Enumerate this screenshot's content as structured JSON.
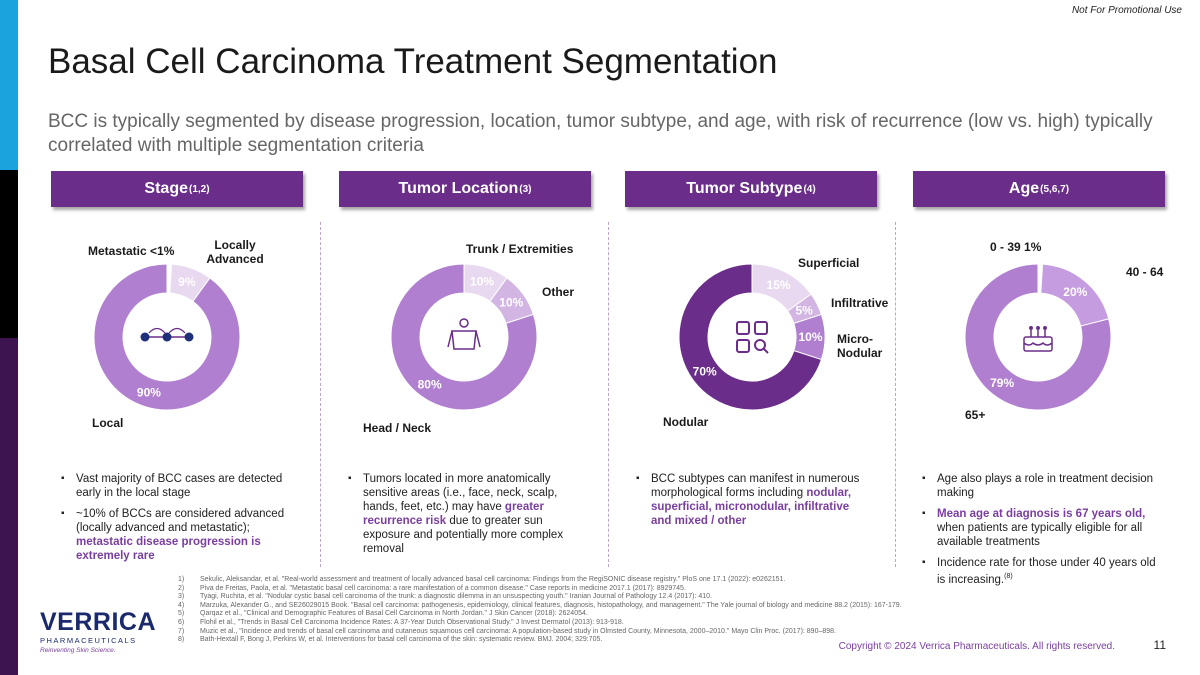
{
  "colors": {
    "dark_purple": "#6a2d8a",
    "light_purple": "#e8d9f0",
    "mid_purple": "#b07fd0",
    "accent": "#7a3ea0"
  },
  "top_note": "Not For Promotional Use",
  "title": "Basal Cell Carcinoma Treatment Segmentation",
  "subtitle": "BCC is typically segmented by disease progression, location, tumor subtype, and age, with risk of recurrence (low vs. high) typically correlated with multiple segmentation criteria",
  "headers": [
    {
      "label": "Stage",
      "sup": "(1,2)"
    },
    {
      "label": "Tumor Location",
      "sup": "(3)"
    },
    {
      "label": "Tumor Subtype",
      "sup": "(4)"
    },
    {
      "label": "Age",
      "sup": "(5,6,7)"
    }
  ],
  "chart_data": [
    {
      "type": "pie",
      "title": "Stage",
      "icon": "progression-dots-icon",
      "slices": [
        {
          "name": "Metastatic",
          "value": 1,
          "value_label": "<1%",
          "color": "#ffffff"
        },
        {
          "name": "Locally Advanced",
          "value": 9,
          "value_label": "9%",
          "color": "#e8d9f0"
        },
        {
          "name": "Local",
          "value": 90,
          "value_label": "90%",
          "color": "#b07fd0"
        }
      ]
    },
    {
      "type": "pie",
      "title": "Tumor Location",
      "icon": "torso-icon",
      "slices": [
        {
          "name": "Trunk / Extremities",
          "value": 10,
          "value_label": "10%",
          "color": "#e8d9f0"
        },
        {
          "name": "Other",
          "value": 10,
          "value_label": "10%",
          "color": "#d2b5e3"
        },
        {
          "name": "Head / Neck",
          "value": 80,
          "value_label": "80%",
          "color": "#b07fd0"
        }
      ]
    },
    {
      "type": "pie",
      "title": "Tumor Subtype",
      "icon": "search-grid-icon",
      "slices": [
        {
          "name": "Superficial",
          "value": 15,
          "value_label": "15%",
          "color": "#e8d9f0"
        },
        {
          "name": "Infiltrative",
          "value": 5,
          "value_label": "5%",
          "color": "#d2b5e3"
        },
        {
          "name": "Micro-Nodular",
          "value": 10,
          "value_label": "10%",
          "color": "#b07fd0"
        },
        {
          "name": "Nodular",
          "value": 70,
          "value_label": "70%",
          "color": "#6a2d8a"
        }
      ]
    },
    {
      "type": "pie",
      "title": "Age",
      "icon": "birthday-cake-icon",
      "slices": [
        {
          "name": "0 - 39",
          "value": 1,
          "value_label": "1%",
          "color": "#ffffff"
        },
        {
          "name": "40 - 64",
          "value": 20,
          "value_label": "20%",
          "color": "#c69ce0"
        },
        {
          "name": "65+",
          "value": 79,
          "value_label": "79%",
          "color": "#b07fd0"
        }
      ]
    }
  ],
  "labels": {
    "stage": {
      "metastatic": "Metastatic",
      "metastatic_pct": "<1%",
      "locally_advanced": "Locally Advanced",
      "local": "Local"
    },
    "location": {
      "trunk": "Trunk / Extremities",
      "other": "Other",
      "head_neck": "Head / Neck"
    },
    "subtype": {
      "superficial": "Superficial",
      "infiltrative": "Infiltrative",
      "micro_nodular": "Micro- Nodular",
      "nodular": "Nodular"
    },
    "age": {
      "young": "0 - 39",
      "young_pct": "1%",
      "mid": "40 - 64",
      "old": "65+"
    }
  },
  "bullets": {
    "stage": {
      "b1": "Vast majority of BCC cases are detected early in the local stage",
      "b2_pre": "~10% of BCCs are considered advanced (locally advanced and metastatic); ",
      "b2_hl": "metastatic disease progression is extremely rare"
    },
    "location": {
      "pre": "Tumors located in more anatomically sensitive areas (i.e., face, neck, scalp, hands, feet, etc.) may have ",
      "hl": "greater recurrence risk",
      "post": " due to greater sun exposure and potentially more complex removal"
    },
    "subtype": {
      "pre": "BCC subtypes can manifest in numerous morphological forms including ",
      "hl": "nodular, superficial, micronodular, infiltrative and mixed / other"
    },
    "age": {
      "b1": "Age also plays a role in treatment decision making",
      "b2_hl": "Mean age at diagnosis is 67 years old,",
      "b2_post": " when patients are typically eligible for all available treatments",
      "b3": "Incidence rate for those under 40 years old is increasing.",
      "b3_sup": "(8)"
    }
  },
  "references": [
    {
      "num": "1)",
      "text": "Sekulic, Aleksandar, et al. \"Real-world assessment and treatment of locally advanced basal cell carcinoma: Findings from the RegiSONIC disease registry.\" PloS one 17.1 (2022): e0262151."
    },
    {
      "num": "2)",
      "text": "Piva de Freitas, Paola, et al. \"Metastatic basal cell carcinoma: a rare manifestation of a common disease.\" Case reports in medicine 2017.1 (2017): 8929745."
    },
    {
      "num": "3)",
      "text": "Tyagi, Ruchita, et al. \"Nodular cystic basal cell carcinoma of the trunk: a diagnostic dilemma in an unsuspecting youth.\" Iranian Journal of Pathology 12.4 (2017): 410."
    },
    {
      "num": "4)",
      "text": "Marzuka, Alexander G., and SE26029015 Book. \"Basal cell carcinoma: pathogenesis, epidemiology, clinical features, diagnosis, histopathology, and management.\" The Yale journal of biology and medicine 88.2 (2015): 167-179."
    },
    {
      "num": "5)",
      "text": "Qarqaz et al., \"Clinical and Demographic Features of Basal Cell Carcinoma in North Jordan.\" J Skin Cancer (2018): 2624054."
    },
    {
      "num": "6)",
      "text": "Flohil et al., \"Trends in Basal Cell Carcinoma Incidence Rates: A 37-Year Dutch Observational Study.\" J Invest Dermatol (2013): 913-918."
    },
    {
      "num": "7)",
      "text": "Muzic et al., \"Incidence and trends of basal cell carcinoma and cutaneous squamous cell carcinoma: A population-based study in Olmsted County, Minnesota, 2000–2010.\" Mayo Clin Proc. (2017): 890–898."
    },
    {
      "num": "8)",
      "text": "Bath-Hextall F, Bong J, Perkins W, et al. Interventions for basal cell carcinoma of the skin: systematic review. BMJ. 2004; 329:705."
    }
  ],
  "logo": {
    "word": "VERRICA",
    "sub": "PHARMACEUTICALS",
    "tagline": "Reinventing Skin Science."
  },
  "copyright": "Copyright © 2024 Verrica Pharmaceuticals. All rights reserved.",
  "page_number": "11"
}
